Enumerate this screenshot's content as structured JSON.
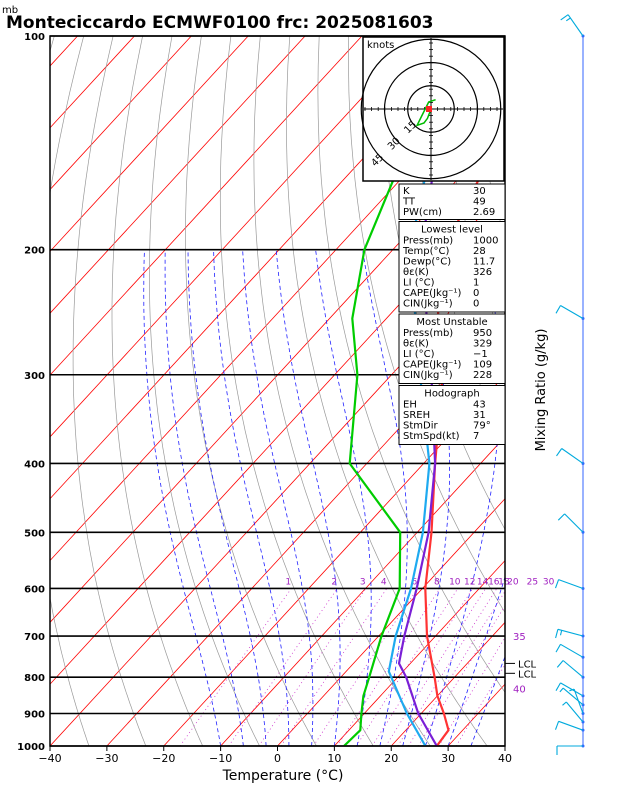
{
  "title": "Monteciccardo ECMWF0100  frc: 2025081603",
  "pressure_unit": "mb",
  "xlabel": "Temperature (°C)",
  "right_label": "Mixing Ratio (g/kg)",
  "hodograph": {
    "unit": "knots",
    "ring_labels": [
      "15",
      "30",
      "45"
    ]
  },
  "indices_box": {
    "rows": [
      {
        "label": "K",
        "value": "30"
      },
      {
        "label": "TT",
        "value": "49"
      },
      {
        "label": "PW(cm)",
        "value": "2.69"
      }
    ]
  },
  "lowest_level": {
    "header": "Lowest level",
    "rows": [
      {
        "label": "Press(mb)",
        "value": "1000"
      },
      {
        "label": "Temp(°C)",
        "value": "28"
      },
      {
        "label": "Dewp(°C)",
        "value": "11.7"
      },
      {
        "label": "θε(K)",
        "value": "326"
      },
      {
        "label": "LI (°C)",
        "value": "1"
      },
      {
        "label": "CAPE(Jkg⁻¹)",
        "value": "0"
      },
      {
        "label": "CIN(Jkg⁻¹)",
        "value": "0"
      }
    ]
  },
  "most_unstable": {
    "header": "Most Unstable",
    "rows": [
      {
        "label": "Press(mb)",
        "value": "950"
      },
      {
        "label": "θε(K)",
        "value": "329"
      },
      {
        "label": "LI (°C)",
        "value": "−1"
      },
      {
        "label": "CAPE(Jkg⁻¹)",
        "value": "109"
      },
      {
        "label": "CIN(Jkg⁻¹)",
        "value": "228"
      }
    ]
  },
  "hodograph_box": {
    "header": "Hodograph",
    "rows": [
      {
        "label": "EH",
        "value": "43"
      },
      {
        "label": "SREH",
        "value": "31"
      },
      {
        "label": "StmDir",
        "value": "79°"
      },
      {
        "label": "StmSpd(kt)",
        "value": "7"
      }
    ]
  },
  "lcl_labels": [
    "LCL",
    "LCL"
  ],
  "colors": {
    "temperature": "#ff3333",
    "dewpoint": "#00cc00",
    "parcel_purple": "#7a1fd6",
    "parcel_cyan": "#1eaaf0",
    "isotherm": "#ff0000",
    "dry_adiabat": "#999999",
    "moist_adiabat": "#2222ff",
    "mixing_ratio": "#cc33cc",
    "wind_barb": "#00aadd"
  },
  "chart_data": {
    "type": "line",
    "xlabel": "Temperature (°C)",
    "ylabel": "mb",
    "xlim": [
      -40,
      40
    ],
    "ylim_pressure": [
      1000,
      100
    ],
    "x_ticks": [
      -40,
      -30,
      -20,
      -10,
      0,
      10,
      20,
      30,
      40
    ],
    "pressure_ticks": [
      1000,
      900,
      800,
      700,
      600,
      500,
      400,
      300,
      200,
      100
    ],
    "mixing_ratio_labels": [
      "1",
      "2",
      "3",
      "4",
      "6",
      "8",
      "10",
      "12",
      "14",
      "16",
      "18",
      "20",
      "25",
      "30"
    ],
    "mixing_ratio_values": [
      1,
      2,
      3,
      4,
      6,
      8,
      10,
      12,
      14,
      16,
      18,
      20,
      25,
      30
    ],
    "adiabat_labels": [
      {
        "text": "35",
        "pressure": 700
      },
      {
        "text": "40",
        "pressure": 830
      }
    ],
    "series": [
      {
        "name": "temperature",
        "points": [
          [
            1000,
            28
          ],
          [
            950,
            27.5
          ],
          [
            900,
            24
          ],
          [
            850,
            20
          ],
          [
            800,
            16.5
          ],
          [
            700,
            8.5
          ],
          [
            600,
            0.5
          ],
          [
            500,
            -7.5
          ],
          [
            400,
            -18
          ],
          [
            300,
            -31
          ],
          [
            250,
            -41
          ],
          [
            200,
            -51
          ],
          [
            100,
            -67
          ]
        ]
      },
      {
        "name": "dewpoint",
        "points": [
          [
            1000,
            11.7
          ],
          [
            950,
            12
          ],
          [
            900,
            9.5
          ],
          [
            850,
            7
          ],
          [
            800,
            5
          ],
          [
            700,
            0.5
          ],
          [
            600,
            -4
          ],
          [
            500,
            -13
          ],
          [
            400,
            -33
          ],
          [
            300,
            -46
          ],
          [
            250,
            -56
          ],
          [
            200,
            -65
          ],
          [
            100,
            -84
          ]
        ]
      },
      {
        "name": "parcel_purple",
        "points": [
          [
            1000,
            28
          ],
          [
            900,
            19.5
          ],
          [
            800,
            11.5
          ],
          [
            765,
            8
          ],
          [
            700,
            4.5
          ],
          [
            600,
            -1
          ],
          [
            500,
            -8
          ],
          [
            400,
            -18
          ],
          [
            300,
            -33
          ],
          [
            200,
            -55
          ],
          [
            115,
            -78
          ]
        ]
      },
      {
        "name": "parcel_cyan",
        "points": [
          [
            1000,
            26
          ],
          [
            900,
            17.5
          ],
          [
            785,
            7.5
          ],
          [
            700,
            3
          ],
          [
            600,
            -2
          ],
          [
            500,
            -9
          ],
          [
            400,
            -19
          ],
          [
            300,
            -35
          ],
          [
            200,
            -57
          ],
          [
            110,
            -80
          ]
        ]
      }
    ],
    "wind_barbs": [
      {
        "pressure": 1000,
        "speed_kt": 10,
        "dir": 270
      },
      {
        "pressure": 950,
        "speed_kt": 10,
        "dir": 250
      },
      {
        "pressure": 925,
        "speed_kt": 5,
        "dir": 220
      },
      {
        "pressure": 900,
        "speed_kt": 5,
        "dir": 200
      },
      {
        "pressure": 875,
        "speed_kt": 5,
        "dir": 230
      },
      {
        "pressure": 850,
        "speed_kt": 10,
        "dir": 240
      },
      {
        "pressure": 800,
        "speed_kt": 10,
        "dir": 230
      },
      {
        "pressure": 750,
        "speed_kt": 10,
        "dir": 240
      },
      {
        "pressure": 700,
        "speed_kt": 15,
        "dir": 255
      },
      {
        "pressure": 600,
        "speed_kt": 10,
        "dir": 250
      },
      {
        "pressure": 500,
        "speed_kt": 10,
        "dir": 225
      },
      {
        "pressure": 400,
        "speed_kt": 10,
        "dir": 235
      },
      {
        "pressure": 250,
        "speed_kt": 10,
        "dir": 240
      },
      {
        "pressure": 100,
        "speed_kt": 15,
        "dir": 215
      }
    ],
    "hodograph_trace": [
      [
        0,
        0
      ],
      [
        -1.5,
        -4
      ],
      [
        -3,
        -6
      ],
      [
        -6,
        -7
      ],
      [
        -4,
        -3
      ],
      [
        -1,
        3
      ],
      [
        2,
        4
      ]
    ],
    "lcl_pressures": [
      765,
      790
    ]
  }
}
